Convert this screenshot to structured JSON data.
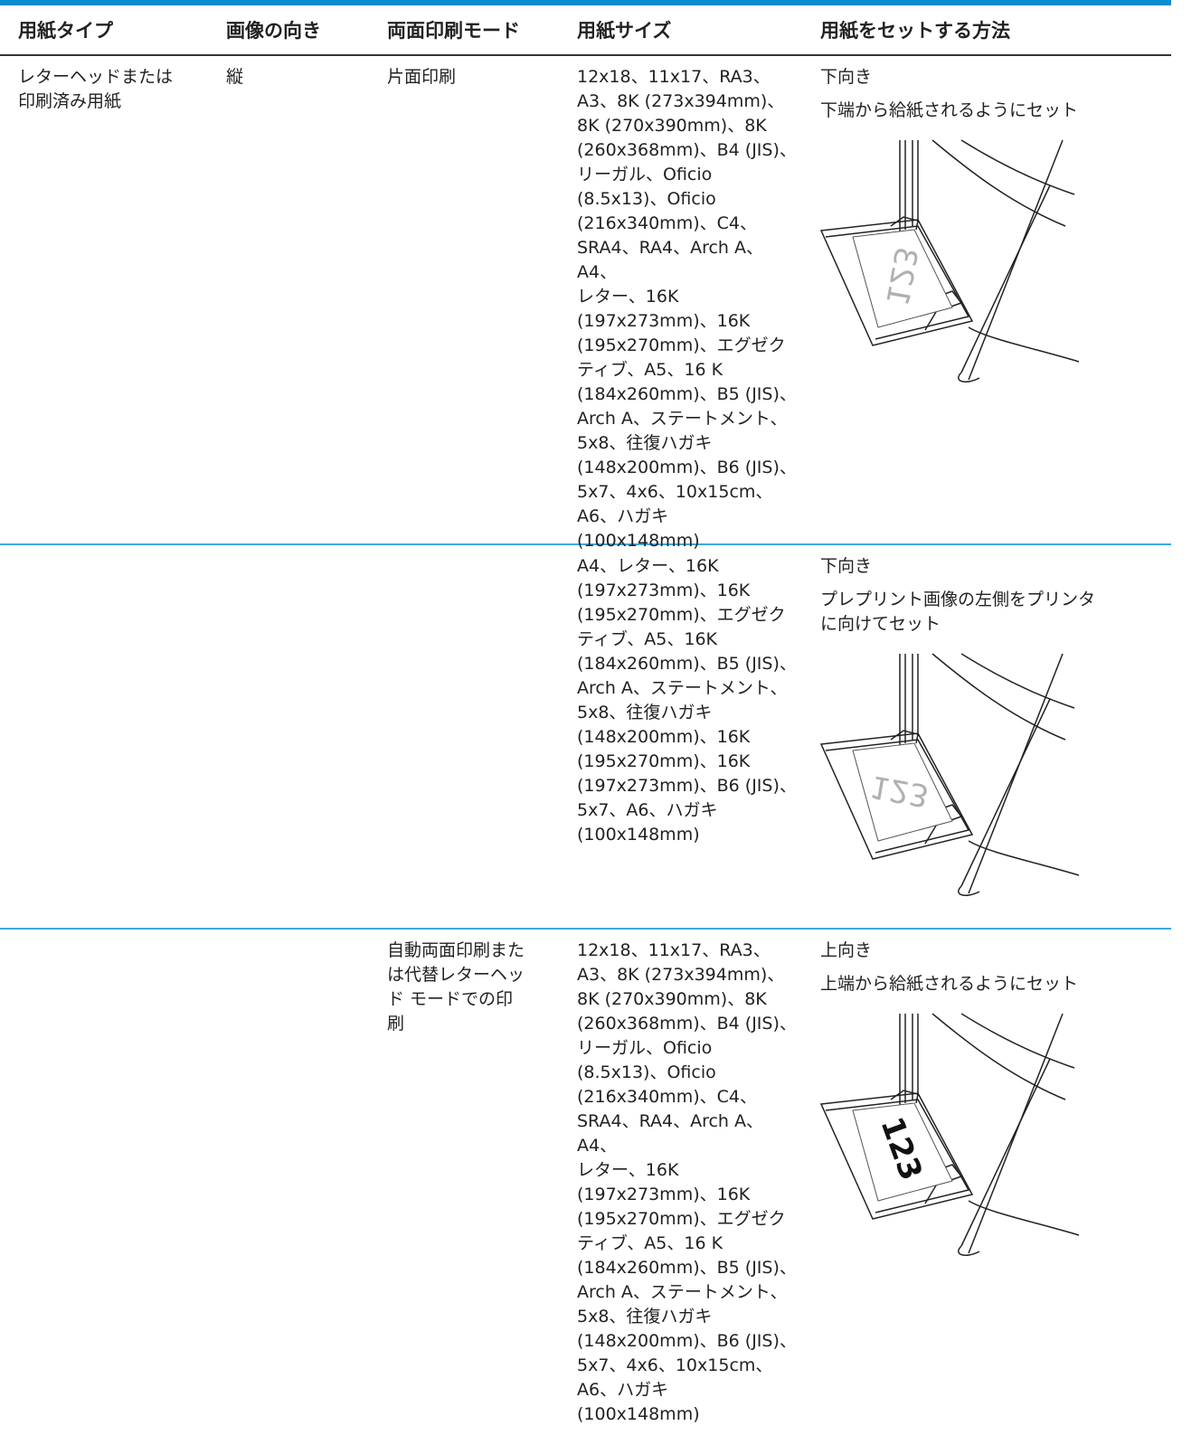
{
  "table": {
    "header": [
      "用紙タイプ",
      "画像の向き",
      "両面印刷モード",
      "用紙サイズ",
      "用紙をセットする方法"
    ],
    "rows": [
      {
        "paper_type": [
          "レターヘッドまたは",
          "印刷済み用紙"
        ],
        "orientation": "縦",
        "duplex_mode": [
          "片面印刷"
        ],
        "sizes": [
          "12x18、11x17、RA3、",
          "A3、8K (273x394mm)、",
          "8K (270x390mm)、8K",
          "(260x368mm)、B4 (JIS)、",
          "リーガル、Oficio",
          "(8.5x13)、Oficio",
          "(216x340mm)、C4、",
          "SRA4、RA4、Arch A、A4、",
          "レター、16K",
          "(197x273mm)、16K",
          "(195x270mm)、エグゼク",
          "ティブ、A5、16 K",
          "(184x260mm)、B5 (JIS)、",
          "Arch A、ステートメント、",
          "5x8、往復ハガキ",
          "(148x200mm)、B6 (JIS)、",
          "5x7、4x6、10x15cm、",
          "A6、ハガキ",
          "(100x148mm)"
        ],
        "face": "下向き",
        "instruction": [
          "下端から給紙されるようにセット"
        ],
        "illustration_text": "123"
      },
      {
        "paper_type": [],
        "orientation": "",
        "duplex_mode": [],
        "sizes": [
          "A4、レター、16K",
          "(197x273mm)、16K",
          "(195x270mm)、エグゼク",
          "ティブ、A5、16K",
          "(184x260mm)、B5 (JIS)、",
          "Arch A、ステートメント、",
          "5x8、往復ハガキ",
          "(148x200mm)、16K",
          "(195x270mm)、16K",
          "(197x273mm)、B6 (JIS)、",
          "5x7、A6、ハガキ",
          "(100x148mm)"
        ],
        "face": "下向き",
        "instruction": [
          "プレプリント画像の左側をプリンタ",
          "に向けてセット"
        ],
        "illustration_text": "123"
      },
      {
        "paper_type": [],
        "orientation": "",
        "duplex_mode": [
          "自動両面印刷また",
          "は代替レターヘッ",
          "ド モードでの印",
          "刷"
        ],
        "sizes": [
          "12x18、11x17、RA3、",
          "A3、8K (273x394mm)、",
          "8K (270x390mm)、8K",
          "(260x368mm)、B4 (JIS)、",
          "リーガル、Oficio",
          "(8.5x13)、Oficio",
          "(216x340mm)、C4、",
          "SRA4、RA4、Arch A、A4、",
          "レター、16K",
          "(197x273mm)、16K",
          "(195x270mm)、エグゼク",
          "ティブ、A5、16 K",
          "(184x260mm)、B5 (JIS)、",
          "Arch A、ステートメント、",
          "5x8、往復ハガキ",
          "(148x200mm)、B6 (JIS)、",
          "5x7、4x6、10x15cm、",
          "A6、ハガキ",
          "(100x148mm)"
        ],
        "face": "上向き",
        "instruction": [
          "上端から給紙されるようにセット"
        ],
        "illustration_text": "123"
      }
    ]
  }
}
